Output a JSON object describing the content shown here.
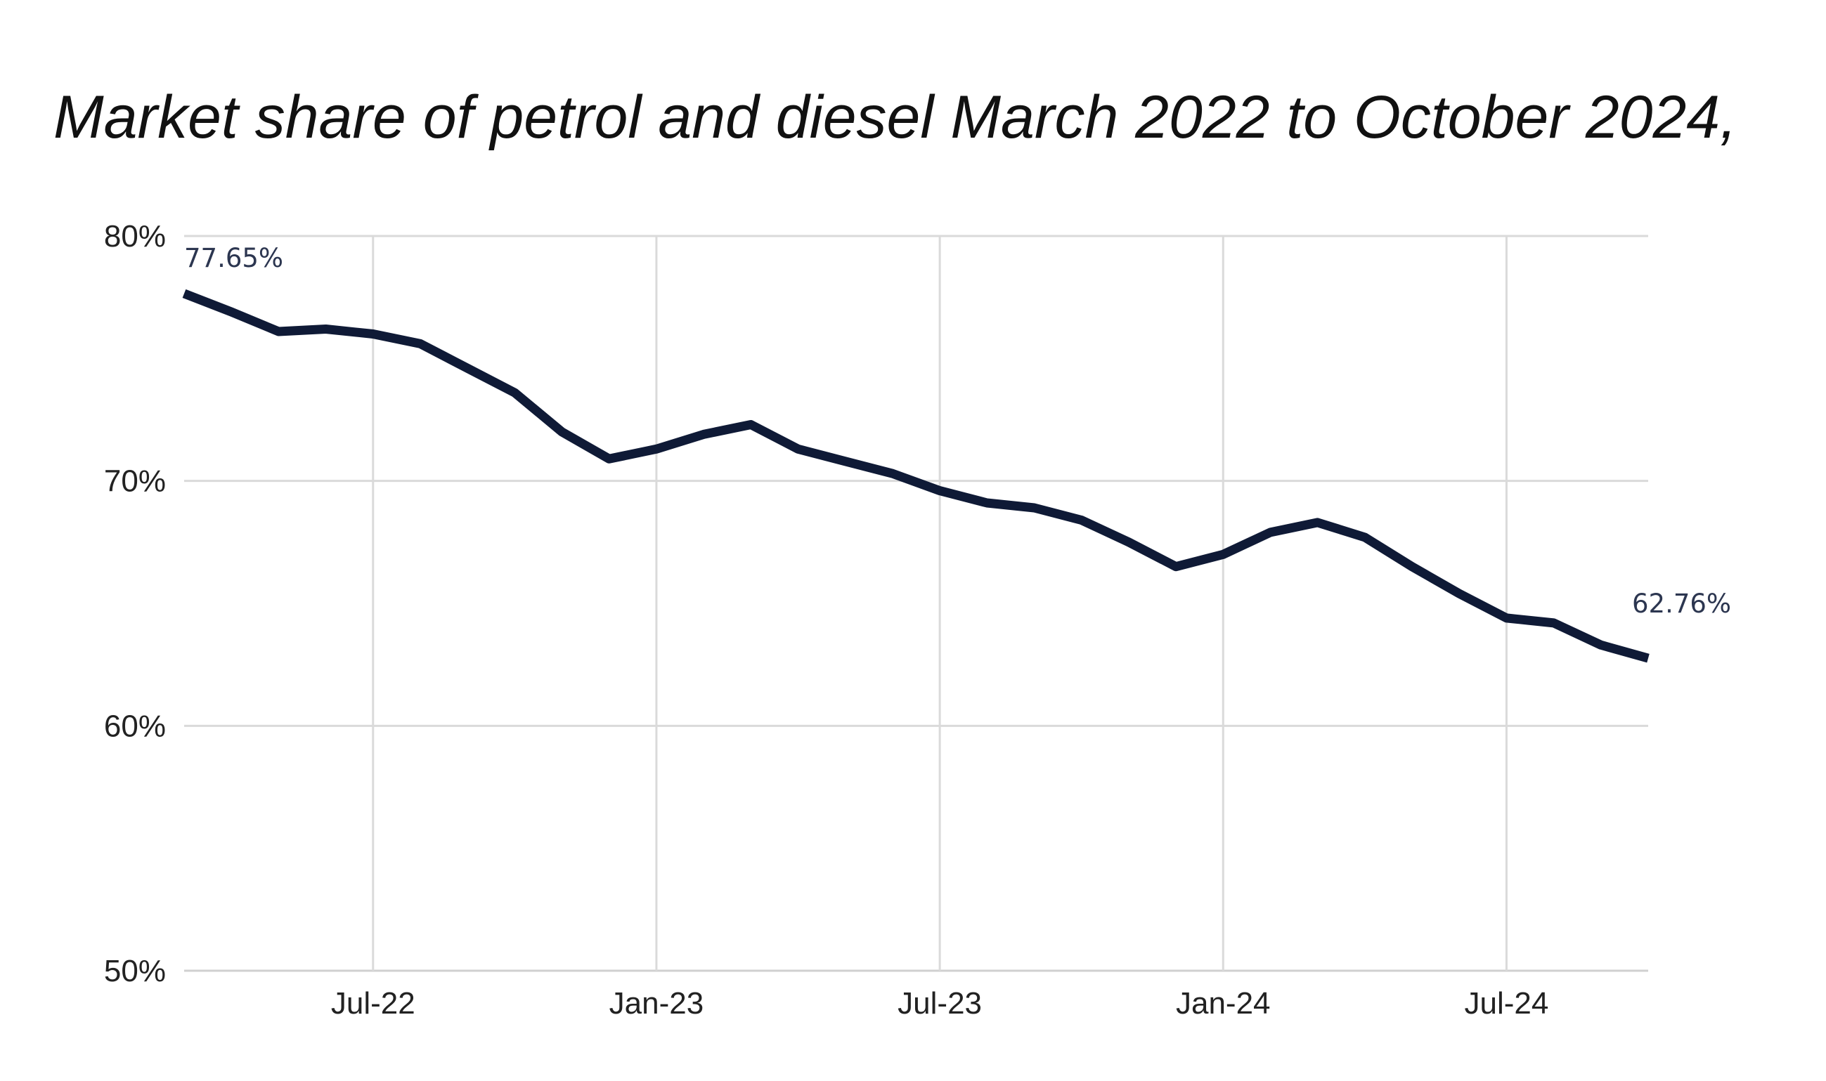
{
  "colors": {
    "line": "#0f1a36",
    "grid": "#dadada",
    "baseline": "#d0d0d0",
    "label": "#2c3650"
  },
  "chart_data": {
    "type": "line",
    "title": "Market share of petrol and diesel March 2022 to October 2024,",
    "xlabel": "",
    "ylabel": "",
    "ylim": [
      50,
      80
    ],
    "y_ticks": [
      80,
      70,
      60,
      50
    ],
    "y_tick_labels": [
      "80%",
      "70%",
      "60%",
      "50%"
    ],
    "x_tick_positions": [
      "2022-07",
      "2023-01",
      "2023-07",
      "2024-01",
      "2024-07"
    ],
    "x_tick_labels": [
      "Jul-22",
      "Jan-23",
      "Jul-23",
      "Jan-24",
      "Jul-24"
    ],
    "grid": true,
    "legend": "none",
    "x": [
      "2022-03",
      "2022-04",
      "2022-05",
      "2022-06",
      "2022-07",
      "2022-08",
      "2022-09",
      "2022-10",
      "2022-11",
      "2022-12",
      "2023-01",
      "2023-02",
      "2023-03",
      "2023-04",
      "2023-05",
      "2023-06",
      "2023-07",
      "2023-08",
      "2023-09",
      "2023-10",
      "2023-11",
      "2023-12",
      "2024-01",
      "2024-02",
      "2024-03",
      "2024-04",
      "2024-05",
      "2024-06",
      "2024-07",
      "2024-08",
      "2024-09",
      "2024-10"
    ],
    "series": [
      {
        "values": [
          77.65,
          76.9,
          76.1,
          76.2,
          76.0,
          75.6,
          74.6,
          73.6,
          72.0,
          70.9,
          71.3,
          71.9,
          72.3,
          71.3,
          70.8,
          70.3,
          69.6,
          69.1,
          68.9,
          68.4,
          67.5,
          66.5,
          67.0,
          67.9,
          68.3,
          67.7,
          66.5,
          65.4,
          64.4,
          64.2,
          63.3,
          62.76
        ]
      }
    ],
    "annotations": [
      {
        "x": "2022-03",
        "y": 77.65,
        "text": "77.65%"
      },
      {
        "x": "2024-10",
        "y": 62.76,
        "text": "62.76%"
      }
    ]
  }
}
